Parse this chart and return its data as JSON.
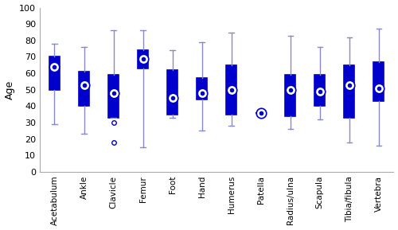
{
  "categories": [
    "Acetabulum",
    "Ankle",
    "Clavicle",
    "Femur",
    "Foot",
    "Hand",
    "Humerus",
    "Patella",
    "Radius/ulna",
    "Scapula",
    "Tibia/fibula",
    "Vertebra"
  ],
  "boxes": [
    {
      "whislo": 29,
      "q1": 50,
      "med": 52,
      "q3": 70,
      "whishi": 78,
      "mean": 64,
      "fliers": []
    },
    {
      "whislo": 23,
      "q1": 40,
      "med": 53,
      "q3": 61,
      "whishi": 76,
      "mean": 53,
      "fliers": []
    },
    {
      "whislo": 33,
      "q1": 33,
      "med": 48,
      "q3": 59,
      "whishi": 86,
      "mean": 48,
      "fliers": [
        18,
        30
      ]
    },
    {
      "whislo": 15,
      "q1": 63,
      "med": 70,
      "q3": 74,
      "whishi": 86,
      "mean": 69,
      "fliers": []
    },
    {
      "whislo": 33,
      "q1": 35,
      "med": 45,
      "q3": 62,
      "whishi": 74,
      "mean": 45,
      "fliers": []
    },
    {
      "whislo": 25,
      "q1": 44,
      "med": 48,
      "q3": 57,
      "whishi": 79,
      "mean": 48,
      "fliers": []
    },
    {
      "whislo": 28,
      "q1": 35,
      "med": 50,
      "q3": 65,
      "whishi": 85,
      "mean": 50,
      "fliers": []
    },
    {
      "whislo": 36,
      "q1": 36,
      "med": 36,
      "q3": 36,
      "whishi": 36,
      "mean": 36,
      "fliers": []
    },
    {
      "whislo": 26,
      "q1": 34,
      "med": 50,
      "q3": 59,
      "whishi": 83,
      "mean": 50,
      "fliers": []
    },
    {
      "whislo": 32,
      "q1": 40,
      "med": 48,
      "q3": 59,
      "whishi": 76,
      "mean": 49,
      "fliers": []
    },
    {
      "whislo": 18,
      "q1": 33,
      "med": 52,
      "q3": 65,
      "whishi": 82,
      "mean": 53,
      "fliers": []
    },
    {
      "whislo": 16,
      "q1": 43,
      "med": 51,
      "q3": 67,
      "whishi": 87,
      "mean": 51,
      "fliers": []
    }
  ],
  "ylim": [
    0,
    100
  ],
  "yticks": [
    0,
    10,
    20,
    30,
    40,
    50,
    60,
    70,
    80,
    90,
    100
  ],
  "ylabel": "Age",
  "box_color": "#0000CD",
  "whisker_color": "#8888CC",
  "mean_marker_facecolor": "white",
  "mean_marker_edgecolor": "#0000CD",
  "flier_color": "#0000CD",
  "background_color": "#ffffff",
  "box_width": 0.35,
  "figsize": [
    5.0,
    2.89
  ],
  "dpi": 100
}
